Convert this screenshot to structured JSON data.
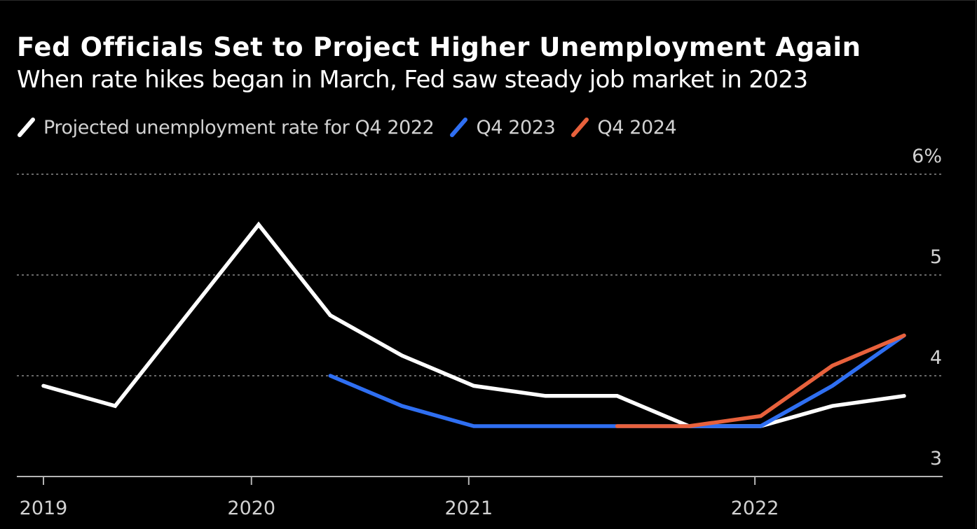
{
  "chart_data": {
    "type": "line",
    "title": "Fed Officials Set to Project Higher Unemployment Again",
    "subtitle": "When rate hikes began in March, Fed saw steady job market in 2023",
    "xlabel": "",
    "ylabel": "",
    "x_unit": "FOMC projection release (sequence index)",
    "x": [
      0,
      1,
      3,
      4,
      5,
      6,
      7,
      8,
      9,
      10,
      11,
      12
    ],
    "xlim": [
      0,
      12.6
    ],
    "ylim": [
      3,
      6
    ],
    "yticks": [
      {
        "value": 6,
        "label": "6%"
      },
      {
        "value": 5,
        "label": "5"
      },
      {
        "value": 4,
        "label": "4"
      },
      {
        "value": 3,
        "label": "3"
      }
    ],
    "xticks": [
      {
        "value": 0,
        "label": "2019"
      },
      {
        "value": 2.9,
        "label": "2020"
      },
      {
        "value": 5.93,
        "label": "2021"
      },
      {
        "value": 9.92,
        "label": "2022"
      }
    ],
    "grid": "horizontal dotted",
    "legend_position": "top-left",
    "series": [
      {
        "name": "Projected unemployment rate for Q4 2022",
        "color": "#ffffff",
        "points": [
          {
            "x": 0,
            "y": 3.9
          },
          {
            "x": 1,
            "y": 3.7
          },
          {
            "x": 3,
            "y": 5.5
          },
          {
            "x": 4,
            "y": 4.6
          },
          {
            "x": 5,
            "y": 4.2
          },
          {
            "x": 6,
            "y": 3.9
          },
          {
            "x": 7,
            "y": 3.8
          },
          {
            "x": 8,
            "y": 3.8
          },
          {
            "x": 9,
            "y": 3.5
          },
          {
            "x": 10,
            "y": 3.5
          },
          {
            "x": 11,
            "y": 3.7
          },
          {
            "x": 12,
            "y": 3.8
          }
        ]
      },
      {
        "name": "Q4 2023",
        "color": "#2f6ff2",
        "points": [
          {
            "x": 4,
            "y": 4.0
          },
          {
            "x": 5,
            "y": 3.7
          },
          {
            "x": 6,
            "y": 3.5
          },
          {
            "x": 7,
            "y": 3.5
          },
          {
            "x": 8,
            "y": 3.5
          },
          {
            "x": 9,
            "y": 3.5
          },
          {
            "x": 10,
            "y": 3.5
          },
          {
            "x": 11,
            "y": 3.9
          },
          {
            "x": 12,
            "y": 4.4
          }
        ]
      },
      {
        "name": "Q4 2024",
        "color": "#e8613c",
        "points": [
          {
            "x": 8,
            "y": 3.5
          },
          {
            "x": 9,
            "y": 3.5
          },
          {
            "x": 10,
            "y": 3.6
          },
          {
            "x": 11,
            "y": 4.1
          },
          {
            "x": 12,
            "y": 4.4
          }
        ]
      }
    ]
  },
  "colors": {
    "background": "#000000",
    "text": "#ffffff",
    "muted_text": "#d2d2d2",
    "grid": "#8a8a8a",
    "axis": "#b4b4b4"
  }
}
